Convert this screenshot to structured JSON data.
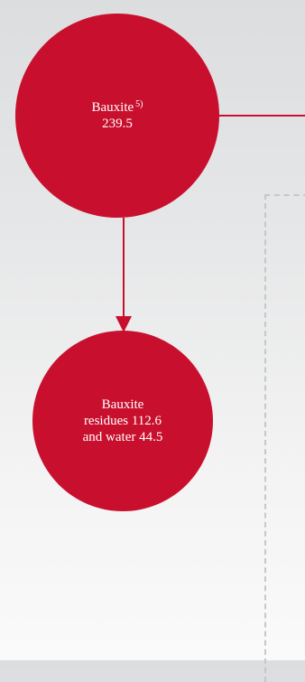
{
  "colors": {
    "node_fill": "#c8102e",
    "connector": "#c8102e",
    "dashed_border": "#c6c7c8"
  },
  "nodes": {
    "bauxite": {
      "label": "Bauxite",
      "footnote": "5)",
      "value": "239.5"
    },
    "residues": {
      "line1": "Bauxite",
      "line2": "residues 112.6",
      "line3": "and water 44.5"
    }
  }
}
